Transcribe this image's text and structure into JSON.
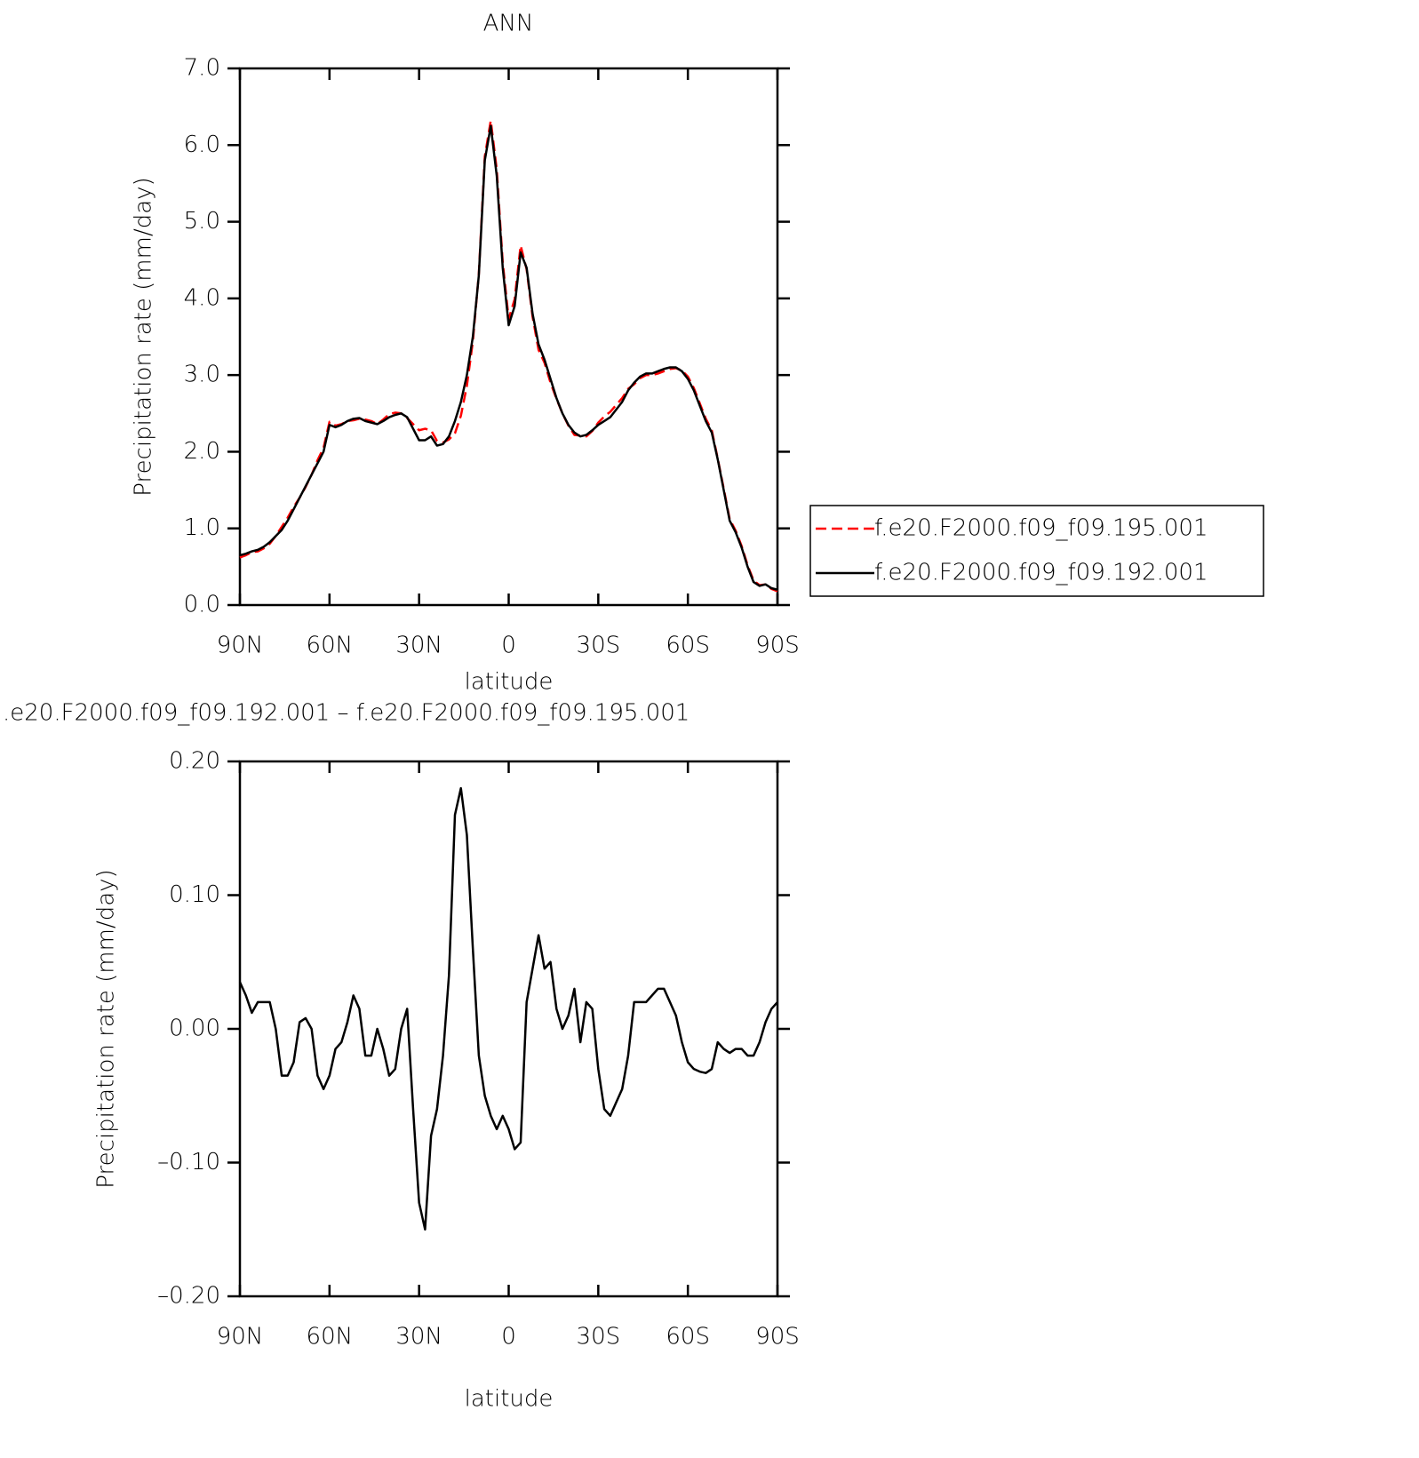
{
  "chart_data": [
    {
      "type": "line",
      "title": "ANN",
      "xlabel": "latitude",
      "ylabel": "Precipitation rate (mm/day)",
      "legend": "right",
      "xlim": [
        90,
        -90
      ],
      "xticks": [
        {
          "value": 90,
          "label": "90N"
        },
        {
          "value": 60,
          "label": "60N"
        },
        {
          "value": 30,
          "label": "30N"
        },
        0,
        {
          "value": -30,
          "label": "30S"
        },
        {
          "value": -60,
          "label": "60S"
        },
        {
          "value": -90,
          "label": "90S"
        }
      ],
      "ylim": [
        0,
        7
      ],
      "yticks": [
        {
          "value": 0,
          "label": "0.0"
        },
        {
          "value": 1,
          "label": "1.0"
        },
        {
          "value": 2,
          "label": "2.0"
        },
        {
          "value": 3,
          "label": "3.0"
        },
        {
          "value": 4,
          "label": "4.0"
        },
        {
          "value": 5,
          "label": "5.0"
        },
        {
          "value": 6,
          "label": "6.0"
        },
        {
          "value": 7,
          "label": "7.0"
        }
      ],
      "x": [
        90,
        88,
        86,
        84,
        82,
        80,
        78,
        76,
        74,
        72,
        70,
        68,
        66,
        64,
        62,
        60,
        58,
        56,
        54,
        52,
        50,
        48,
        46,
        44,
        42,
        40,
        38,
        36,
        34,
        32,
        30,
        28,
        26,
        24,
        22,
        20,
        18,
        16,
        14,
        12,
        10,
        8,
        6,
        4,
        2,
        0,
        -2,
        -4,
        -6,
        -8,
        -10,
        -12,
        -14,
        -16,
        -18,
        -20,
        -22,
        -24,
        -26,
        -28,
        -30,
        -32,
        -34,
        -36,
        -38,
        -40,
        -42,
        -44,
        -46,
        -48,
        -50,
        -52,
        -54,
        -56,
        -58,
        -60,
        -62,
        -64,
        -66,
        -68,
        -70,
        -72,
        -74,
        -76,
        -78,
        -80,
        -82,
        -84,
        -86,
        -88,
        -90
      ],
      "series": [
        {
          "name": "f.e20.F2000.f09_f09.195.001",
          "color": "#ff0000",
          "line_style": "dashed",
          "values": [
            0.62,
            0.65,
            0.69,
            0.7,
            0.74,
            0.8,
            0.9,
            1.02,
            1.14,
            1.28,
            1.4,
            1.54,
            1.7,
            1.89,
            2.05,
            2.39,
            2.34,
            2.36,
            2.4,
            2.41,
            2.43,
            2.42,
            2.4,
            2.36,
            2.42,
            2.49,
            2.51,
            2.5,
            2.44,
            2.36,
            2.28,
            2.3,
            2.28,
            2.14,
            2.12,
            2.16,
            2.24,
            2.47,
            2.86,
            3.44,
            4.32,
            5.85,
            6.32,
            5.68,
            4.47,
            3.73,
            3.99,
            4.69,
            4.38,
            3.76,
            3.33,
            3.16,
            2.9,
            2.69,
            2.5,
            2.34,
            2.22,
            2.21,
            2.2,
            2.27,
            2.38,
            2.46,
            2.52,
            2.61,
            2.7,
            2.82,
            2.88,
            2.96,
            3.0,
            3.0,
            3.02,
            3.05,
            3.08,
            3.09,
            3.06,
            2.98,
            2.83,
            2.63,
            2.43,
            2.28,
            1.91,
            1.52,
            1.12,
            0.97,
            0.77,
            0.52,
            0.32,
            0.26,
            0.27,
            0.21,
            0.18
          ]
        },
        {
          "name": "f.e20.F2000.f09_f09.192.001",
          "color": "#000000",
          "line_style": "solid",
          "values": [
            0.65,
            0.67,
            0.7,
            0.72,
            0.76,
            0.82,
            0.9,
            0.98,
            1.1,
            1.25,
            1.4,
            1.55,
            1.7,
            1.85,
            2.0,
            2.35,
            2.32,
            2.35,
            2.4,
            2.43,
            2.44,
            2.4,
            2.38,
            2.36,
            2.4,
            2.45,
            2.48,
            2.5,
            2.45,
            2.3,
            2.15,
            2.15,
            2.2,
            2.08,
            2.1,
            2.2,
            2.4,
            2.65,
            3.0,
            3.5,
            4.3,
            5.8,
            6.25,
            5.6,
            4.4,
            3.65,
            3.9,
            4.6,
            4.4,
            3.8,
            3.4,
            3.2,
            2.95,
            2.7,
            2.5,
            2.35,
            2.25,
            2.2,
            2.22,
            2.28,
            2.35,
            2.4,
            2.45,
            2.55,
            2.65,
            2.8,
            2.9,
            2.98,
            3.02,
            3.02,
            3.05,
            3.08,
            3.1,
            3.1,
            3.05,
            2.95,
            2.8,
            2.6,
            2.4,
            2.25,
            1.9,
            1.5,
            1.1,
            0.95,
            0.75,
            0.5,
            0.3,
            0.25,
            0.27,
            0.22,
            0.2
          ]
        }
      ]
    },
    {
      "type": "line",
      "title": ".e20.F2000.f09_f09.192.001 – f.e20.F2000.f09_f09.195.001",
      "xlabel": "latitude",
      "ylabel": "Precipitation rate (mm/day)",
      "xlim": [
        90,
        -90
      ],
      "xticks": [
        {
          "value": 90,
          "label": "90N"
        },
        {
          "value": 60,
          "label": "60N"
        },
        {
          "value": 30,
          "label": "30N"
        },
        0,
        {
          "value": -30,
          "label": "30S"
        },
        {
          "value": -60,
          "label": "60S"
        },
        {
          "value": -90,
          "label": "90S"
        }
      ],
      "ylim": [
        -0.2,
        0.2
      ],
      "yticks": [
        {
          "value": -0.2,
          "label": "–0.20"
        },
        {
          "value": -0.1,
          "label": "–0.10"
        },
        {
          "value": 0,
          "label": "0.00"
        },
        {
          "value": 0.1,
          "label": "0.10"
        },
        {
          "value": 0.2,
          "label": "0.20"
        }
      ],
      "x": [
        90,
        88,
        86,
        84,
        82,
        80,
        78,
        76,
        74,
        72,
        70,
        68,
        66,
        64,
        62,
        60,
        58,
        56,
        54,
        52,
        50,
        48,
        46,
        44,
        42,
        40,
        38,
        36,
        34,
        32,
        30,
        28,
        26,
        24,
        22,
        20,
        18,
        16,
        14,
        12,
        10,
        8,
        6,
        4,
        2,
        0,
        -2,
        -4,
        -6,
        -8,
        -10,
        -12,
        -14,
        -16,
        -18,
        -20,
        -22,
        -24,
        -26,
        -28,
        -30,
        -32,
        -34,
        -36,
        -38,
        -40,
        -42,
        -44,
        -46,
        -48,
        -50,
        -52,
        -54,
        -56,
        -58,
        -60,
        -62,
        -64,
        -66,
        -68,
        -70,
        -72,
        -74,
        -76,
        -78,
        -80,
        -82,
        -84,
        -86,
        -88,
        -90
      ],
      "series": [
        {
          "color": "#000000",
          "line_style": "solid",
          "values": [
            0.035,
            0.025,
            0.012,
            0.02,
            0.02,
            0.02,
            0.0,
            -0.035,
            -0.035,
            -0.025,
            0.005,
            0.008,
            0.0,
            -0.035,
            -0.045,
            -0.035,
            -0.015,
            -0.01,
            0.005,
            0.025,
            0.015,
            -0.02,
            -0.02,
            0.0,
            -0.015,
            -0.035,
            -0.03,
            0.0,
            0.015,
            -0.06,
            -0.13,
            -0.15,
            -0.08,
            -0.06,
            -0.02,
            0.04,
            0.16,
            0.18,
            0.145,
            0.06,
            -0.02,
            -0.05,
            -0.065,
            -0.075,
            -0.065,
            -0.075,
            -0.09,
            -0.085,
            0.02,
            0.045,
            0.07,
            0.045,
            0.05,
            0.015,
            0.0,
            0.01,
            0.03,
            -0.01,
            0.02,
            0.015,
            -0.03,
            -0.06,
            -0.065,
            -0.055,
            -0.045,
            -0.02,
            0.02,
            0.02,
            0.02,
            0.025,
            0.03,
            0.03,
            0.02,
            0.01,
            -0.01,
            -0.025,
            -0.03,
            -0.032,
            -0.033,
            -0.03,
            -0.01,
            -0.015,
            -0.018,
            -0.015,
            -0.015,
            -0.02,
            -0.02,
            -0.01,
            0.005,
            0.015,
            0.02
          ]
        }
      ]
    }
  ]
}
